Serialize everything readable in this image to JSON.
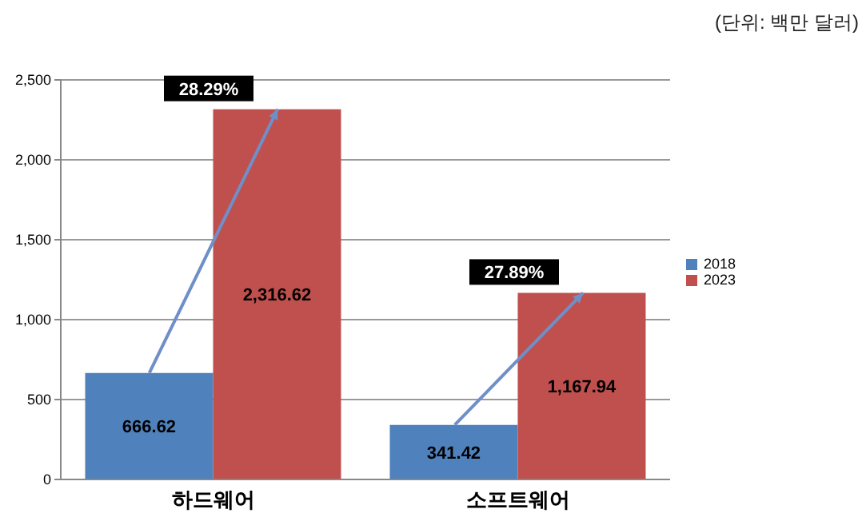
{
  "chart_data": {
    "type": "bar",
    "categories": [
      "하드웨어",
      "소프트웨어"
    ],
    "series": [
      {
        "name": "2018",
        "color": "#4f81bd",
        "values": [
          666.62,
          341.42
        ],
        "value_labels": [
          "666.62",
          "341.42"
        ]
      },
      {
        "name": "2023",
        "color": "#c0504d",
        "values": [
          2316.62,
          1167.94
        ],
        "value_labels": [
          "2,316.62",
          "1,167.94"
        ]
      }
    ],
    "ylim": [
      0,
      2500
    ],
    "yticks": [
      0,
      500,
      {
        "value": 1000,
        "label": "1,000"
      },
      {
        "value": 1500,
        "label": "1,500"
      },
      {
        "value": 2000,
        "label": "2,000"
      },
      {
        "value": 2500,
        "label": "2,500"
      }
    ],
    "grid": "y",
    "legend": "right",
    "annotations": [
      "(단위: 백만 달러)",
      "28.29%",
      "27.89%"
    ]
  }
}
